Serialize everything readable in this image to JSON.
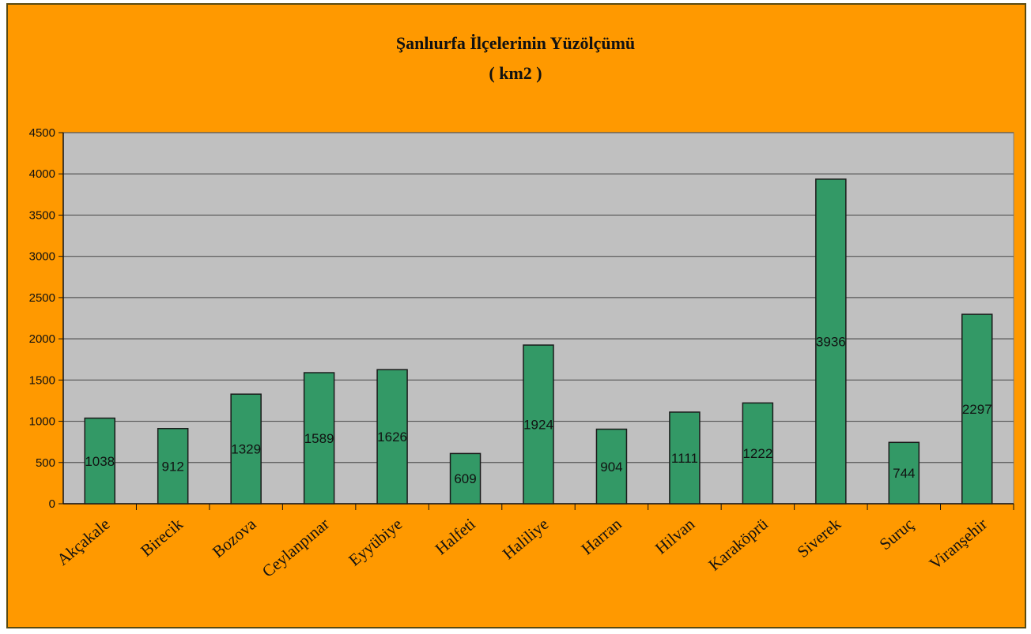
{
  "colors": {
    "background": "#FF9900",
    "plot_area": "#C0C0C0",
    "bar": "#339966",
    "bar_border": "#1a1a1a",
    "gridline": "#555555"
  },
  "chart_data": {
    "type": "bar",
    "title": "Şanlıurfa İlçelerinin Yüzölçümü",
    "subtitle": "( km2 )",
    "xlabel": "",
    "ylabel": "",
    "categories": [
      "Akçakale",
      "Birecik",
      "Bozova",
      "Ceylanpınar",
      "Eyyübiye",
      "Halfeti",
      "Haliliye",
      "Harran",
      "Hilvan",
      "Karaköprü",
      "Siverek",
      "Suruç",
      "Viranşehir"
    ],
    "values": [
      1038,
      912,
      1329,
      1589,
      1626,
      609,
      1924,
      904,
      1111,
      1222,
      3936,
      744,
      2297
    ],
    "data_labels": [
      "1038",
      "912",
      "1329",
      "1589",
      "1626",
      "609",
      "1924",
      "904",
      "1111",
      "1222",
      "3936",
      "744",
      "2297"
    ],
    "y_ticks": [
      "0",
      "500",
      "1000",
      "1500",
      "2000",
      "2500",
      "3000",
      "3500",
      "4000",
      "4500"
    ],
    "ylim": [
      0,
      4500
    ],
    "grid": true,
    "legend": "none"
  }
}
